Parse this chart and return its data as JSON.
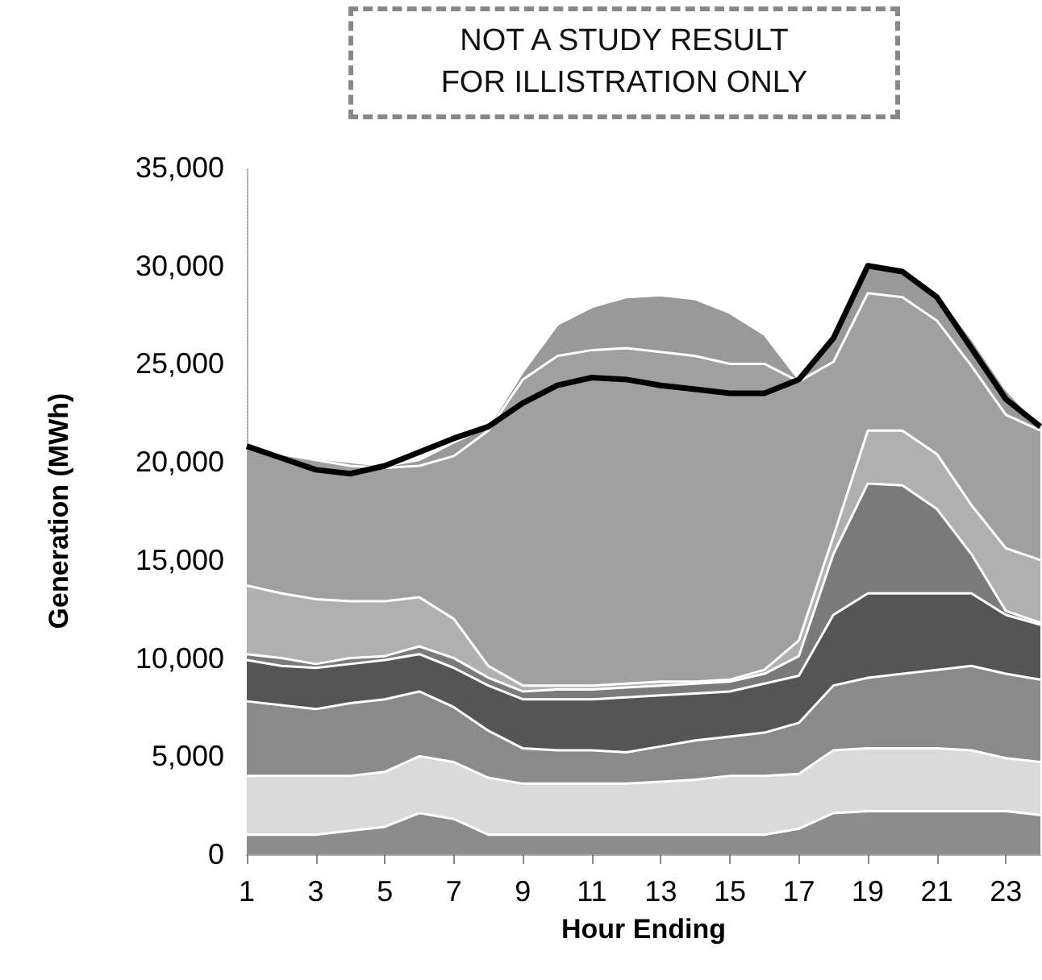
{
  "chart_data": {
    "type": "area",
    "stacked": true,
    "xlabel": "Hour Ending",
    "ylabel": "Generation (MWh)",
    "annotations": [
      "NOT A STUDY RESULT",
      "FOR ILLISTRATION ONLY"
    ],
    "x": [
      1,
      2,
      3,
      4,
      5,
      6,
      7,
      8,
      9,
      10,
      11,
      12,
      13,
      14,
      15,
      16,
      17,
      18,
      19,
      20,
      21,
      22,
      23,
      24
    ],
    "xlim": [
      1,
      24
    ],
    "xticks": [
      1,
      3,
      5,
      7,
      9,
      11,
      13,
      15,
      17,
      19,
      21,
      23
    ],
    "ylim": [
      0,
      35000
    ],
    "yticks": [
      {
        "value": 0,
        "label": "0"
      },
      {
        "value": 5000,
        "label": "5,000"
      },
      {
        "value": 10000,
        "label": "10,000"
      },
      {
        "value": 15000,
        "label": "15,000"
      },
      {
        "value": 20000,
        "label": "20,000"
      },
      {
        "value": 25000,
        "label": "25,000"
      },
      {
        "value": 30000,
        "label": "30,000"
      },
      {
        "value": 35000,
        "label": "35,000"
      }
    ],
    "series": [
      {
        "color": "#8c8c8c",
        "values": [
          1000,
          1000,
          1000,
          1200,
          1400,
          2100,
          1800,
          1000,
          1000,
          1000,
          1000,
          1000,
          1000,
          1000,
          1000,
          1000,
          1300,
          2100,
          2200,
          2200,
          2200,
          2200,
          2200,
          2000
        ]
      },
      {
        "color": "#dadada",
        "values": [
          3000,
          3000,
          3000,
          2800,
          2800,
          2900,
          2900,
          2900,
          2600,
          2600,
          2600,
          2600,
          2700,
          2800,
          3000,
          3000,
          2800,
          3200,
          3200,
          3200,
          3200,
          3100,
          2700,
          2700
        ]
      },
      {
        "color": "#8a8a8a",
        "values": [
          3800,
          3600,
          3400,
          3700,
          3700,
          3300,
          2800,
          2400,
          1800,
          1700,
          1700,
          1600,
          1800,
          2000,
          2000,
          2200,
          2600,
          3300,
          3600,
          3800,
          4000,
          4300,
          4300,
          4200
        ]
      },
      {
        "color": "#555555",
        "values": [
          2100,
          2000,
          2100,
          2000,
          2000,
          1900,
          2000,
          2300,
          2500,
          2600,
          2600,
          2800,
          2600,
          2400,
          2300,
          2500,
          2400,
          3600,
          4300,
          4100,
          3900,
          3700,
          3000,
          2800
        ]
      },
      {
        "color": "#7a7a7a",
        "values": [
          300,
          400,
          200,
          300,
          200,
          400,
          500,
          400,
          400,
          500,
          500,
          500,
          500,
          500,
          500,
          500,
          1000,
          3100,
          5600,
          5500,
          4300,
          2000,
          200,
          100
        ]
      },
      {
        "color": "#b0b0b0",
        "values": [
          3500,
          3300,
          3300,
          2900,
          2800,
          2500,
          2000,
          600,
          300,
          200,
          200,
          200,
          200,
          100,
          100,
          200,
          800,
          900,
          2700,
          2800,
          2800,
          2500,
          3200,
          3200
        ]
      },
      {
        "color": "#a0a0a0",
        "values": [
          7100,
          7100,
          7100,
          6900,
          6800,
          6700,
          8300,
          12000,
          15600,
          16800,
          17100,
          17100,
          16800,
          16600,
          16100,
          15600,
          13200,
          8900,
          7000,
          6800,
          6800,
          7100,
          6800,
          6600
        ]
      },
      {
        "color": "#999999",
        "values": [
          0,
          100,
          100,
          200,
          100,
          300,
          700,
          200,
          400,
          1600,
          2200,
          2600,
          2900,
          2900,
          2600,
          1500,
          100,
          1200,
          1400,
          1400,
          1400,
          1400,
          1300,
          200
        ]
      },
      {
        "type": "line",
        "color": "#000000",
        "values": [
          20800,
          20200,
          19600,
          19400,
          19800,
          20500,
          21200,
          21800,
          23000,
          23900,
          24300,
          24200,
          23900,
          23700,
          23500,
          23500,
          24200,
          26300,
          30000,
          29700,
          28400,
          25800,
          23200,
          21800
        ]
      }
    ]
  }
}
